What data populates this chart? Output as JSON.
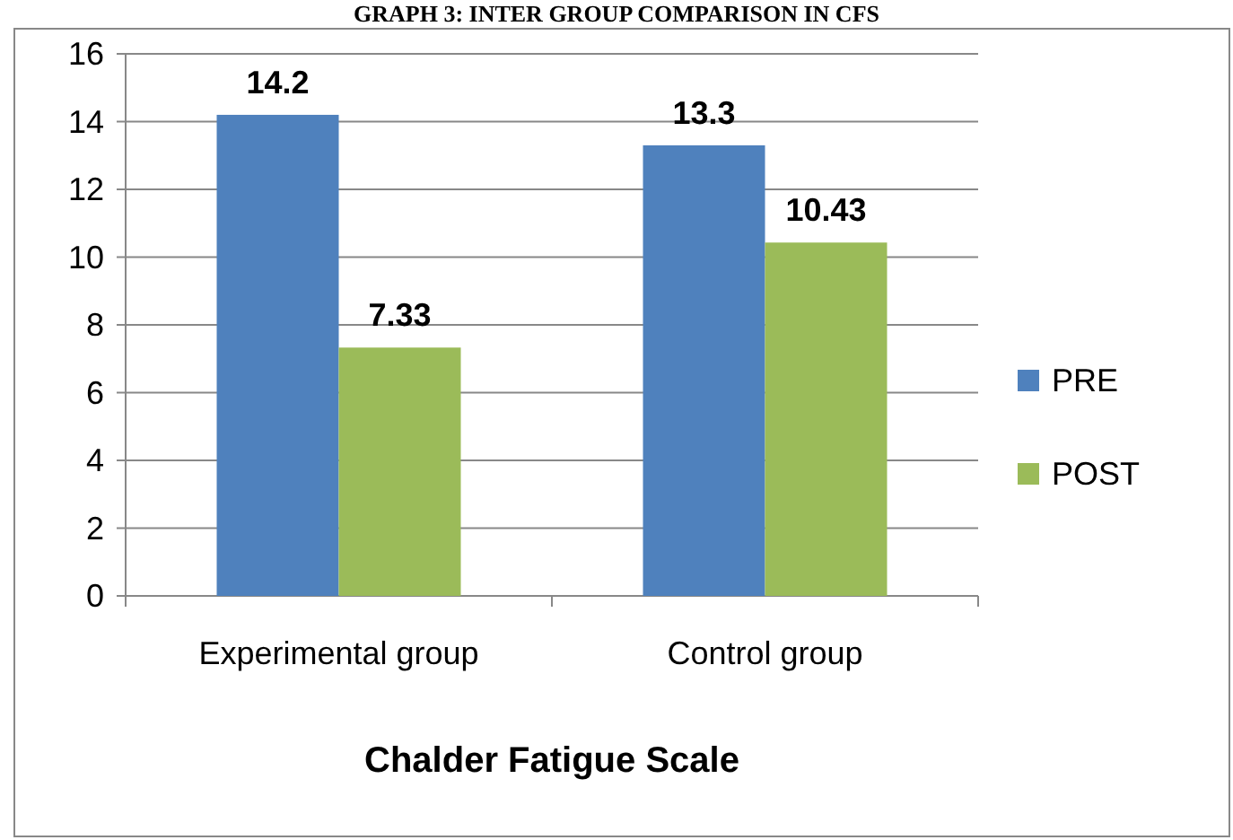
{
  "chart_data": {
    "type": "bar",
    "title": "GRAPH 3: INTER GROUP COMPARISON IN CFS",
    "xlabel": "Chalder Fatigue Scale",
    "categories": [
      "Experimental group",
      "Control group"
    ],
    "series": [
      {
        "name": "PRE",
        "color": "#4f81bd",
        "values": [
          14.2,
          13.3
        ]
      },
      {
        "name": "POST",
        "color": "#9bbb59",
        "values": [
          7.33,
          10.43
        ]
      }
    ],
    "ylim": [
      0,
      16
    ],
    "yticks": [
      0,
      2,
      4,
      6,
      8,
      10,
      12,
      14,
      16
    ],
    "grid": "y",
    "legend": "right",
    "data_labels": true
  }
}
